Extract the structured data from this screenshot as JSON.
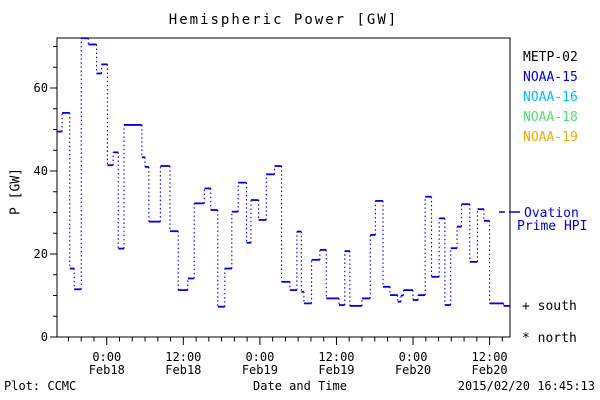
{
  "title": "Hemispheric Power [GW]",
  "y_axis": {
    "label": "P [GW]",
    "major_ticks": [
      0,
      20,
      40,
      60
    ],
    "minor_step": 5
  },
  "x_axis": {
    "title": "Date and Time",
    "major_tick_labels": [
      {
        "time": "0:00",
        "date": "Feb18"
      },
      {
        "time": "12:00",
        "date": "Feb18"
      },
      {
        "time": "0:00",
        "date": "Feb19"
      },
      {
        "time": "12:00",
        "date": "Feb19"
      },
      {
        "time": "0:00",
        "date": "Feb20"
      },
      {
        "time": "12:00",
        "date": "Feb20"
      }
    ],
    "major_tick_hours": [
      0,
      12,
      24,
      36,
      48,
      60
    ],
    "minor_step_hours": 2
  },
  "legend": {
    "satellites": [
      {
        "label": "METP-02",
        "color": "#000000"
      },
      {
        "label": "NOAA-15",
        "color": "#0000EE"
      },
      {
        "label": "NOAA-16",
        "color": "#00BFFF"
      },
      {
        "label": "NOAA-18",
        "color": "#55DD77"
      },
      {
        "label": "NOAA-19",
        "color": "#FFA500"
      }
    ],
    "ovation": {
      "line1": "Ovation",
      "line2": "Prime HPI",
      "color": "#0000EE"
    },
    "south_label": "+ south",
    "north_label": "* north"
  },
  "footer": {
    "credit": "Plot: CCMC",
    "timestamp": "2015/02/20 16:45:13"
  },
  "chart_data": {
    "type": "line",
    "subtype": "step-post, solid horizontal segments with dotted vertical connectors",
    "title": "Hemispheric Power [GW]",
    "xlabel": "Date and Time",
    "ylabel": "P [GW]",
    "x_unit": "hours since 2015-02-18 00:00 UT",
    "x_range": [
      -7.8,
      63.2
    ],
    "ylim": [
      0,
      72
    ],
    "grid": false,
    "legend_position": "right",
    "series": [
      {
        "name": "Ovation Prime HPI",
        "color": "#0000EE",
        "points": [
          [
            -7.8,
            49.5
          ],
          [
            -7.0,
            54.0
          ],
          [
            -5.8,
            16.5
          ],
          [
            -5.1,
            11.5
          ],
          [
            -4.0,
            72.0
          ],
          [
            -2.9,
            70.5
          ],
          [
            -1.6,
            63.5
          ],
          [
            -0.8,
            65.7
          ],
          [
            0.1,
            41.4
          ],
          [
            1.0,
            44.5
          ],
          [
            1.8,
            21.3
          ],
          [
            2.7,
            51.1
          ],
          [
            5.5,
            43.3
          ],
          [
            6.0,
            41.0
          ],
          [
            6.6,
            27.8
          ],
          [
            8.4,
            41.2
          ],
          [
            9.9,
            25.5
          ],
          [
            11.2,
            11.3
          ],
          [
            12.7,
            14.1
          ],
          [
            13.7,
            32.2
          ],
          [
            15.3,
            35.8
          ],
          [
            16.3,
            30.6
          ],
          [
            17.4,
            7.3
          ],
          [
            18.5,
            16.5
          ],
          [
            19.6,
            30.2
          ],
          [
            20.6,
            37.2
          ],
          [
            21.9,
            22.7
          ],
          [
            22.6,
            33.0
          ],
          [
            23.8,
            28.2
          ],
          [
            25.0,
            39.2
          ],
          [
            26.3,
            41.2
          ],
          [
            27.4,
            13.3
          ],
          [
            28.7,
            11.3
          ],
          [
            29.8,
            25.4
          ],
          [
            30.5,
            10.9
          ],
          [
            30.9,
            8.1
          ],
          [
            32.1,
            18.6
          ],
          [
            33.4,
            21.0
          ],
          [
            34.4,
            9.3
          ],
          [
            36.4,
            7.7
          ],
          [
            37.3,
            20.7
          ],
          [
            38.1,
            7.5
          ],
          [
            40.0,
            9.3
          ],
          [
            41.3,
            24.6
          ],
          [
            42.1,
            32.8
          ],
          [
            43.3,
            12.1
          ],
          [
            44.4,
            10.1
          ],
          [
            45.6,
            8.5
          ],
          [
            46.1,
            10.0
          ],
          [
            46.5,
            11.3
          ],
          [
            48.0,
            8.9
          ],
          [
            48.8,
            10.1
          ],
          [
            49.9,
            33.8
          ],
          [
            50.9,
            14.5
          ],
          [
            52.1,
            28.6
          ],
          [
            53.0,
            7.7
          ],
          [
            53.9,
            21.4
          ],
          [
            54.9,
            26.6
          ],
          [
            55.6,
            32.0
          ],
          [
            56.9,
            18.1
          ],
          [
            58.1,
            30.8
          ],
          [
            59.1,
            28.0
          ],
          [
            60.0,
            8.1
          ],
          [
            62.2,
            7.5
          ]
        ]
      }
    ]
  }
}
